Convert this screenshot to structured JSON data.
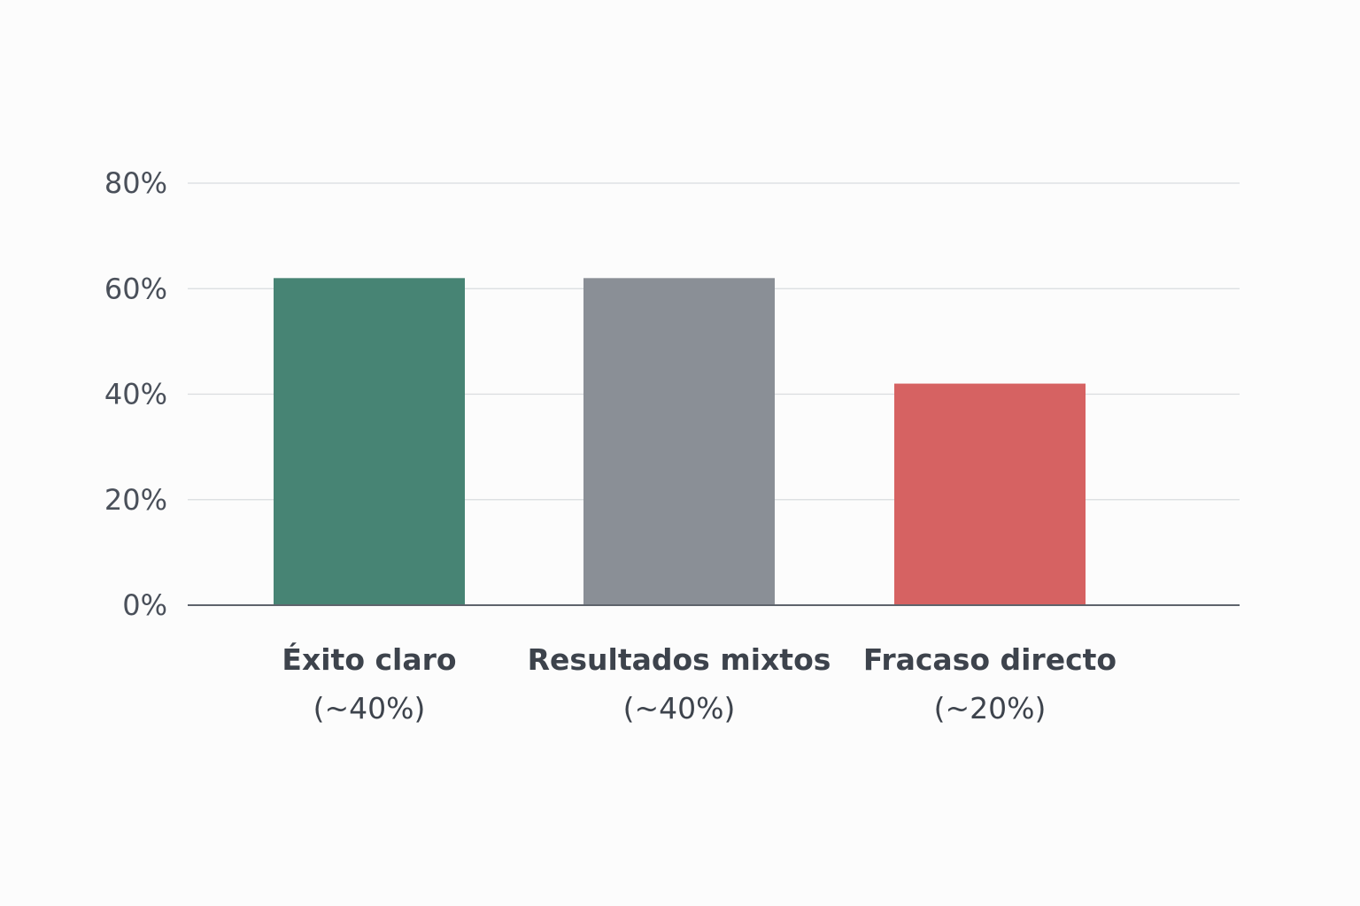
{
  "chart_data": {
    "type": "bar",
    "categories": [
      "Éxito claro",
      "Resultados mixtos",
      "Fracaso directo"
    ],
    "category_sublabels": [
      "(~40%)",
      "(~40%)",
      "(~20%)"
    ],
    "values": [
      62,
      62,
      42
    ],
    "colors": [
      "#478474",
      "#8a8f96",
      "#d66262"
    ],
    "yticks": [
      "0%",
      "20%",
      "40%",
      "60%",
      "80%"
    ],
    "ytick_values": [
      0,
      20,
      40,
      60,
      80
    ],
    "ylim": [
      0,
      82
    ],
    "grid": true,
    "title": "",
    "xlabel": "",
    "ylabel": ""
  }
}
